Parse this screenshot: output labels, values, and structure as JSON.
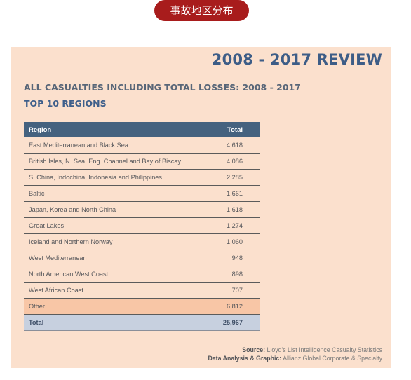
{
  "banner": {
    "label": "事故地区分布"
  },
  "panel": {
    "review_title": "2008 - 2017 REVIEW",
    "heading_line1": "ALL CASUALTIES INCLUDING TOTAL LOSSES: 2008 - 2017",
    "heading_line2": "TOP 10 REGIONS"
  },
  "table": {
    "headers": [
      "Region",
      "Total"
    ],
    "rows": [
      [
        "East Mediterranean and Black Sea",
        "4,618"
      ],
      [
        "British Isles, N. Sea, Eng. Channel and Bay of Biscay",
        "4,086"
      ],
      [
        "S. China, Indochina, Indonesia and Philippines",
        "2,285"
      ],
      [
        "Baltic",
        "1,661"
      ],
      [
        "Japan, Korea and North China",
        "1,618"
      ],
      [
        "Great Lakes",
        "1,274"
      ],
      [
        "Iceland and Northern Norway",
        "1,060"
      ],
      [
        "West Mediterranean",
        "948"
      ],
      [
        "North American West Coast",
        "898"
      ],
      [
        "West African Coast",
        "707"
      ],
      [
        "Other",
        "6,812"
      ],
      [
        "Total",
        "25,967"
      ]
    ]
  },
  "footer": {
    "source_label": "Source:",
    "source_text": "Lloyd's List Intelligence Casualty Statistics",
    "analysis_label": "Data Analysis & Graphic:",
    "analysis_text": "Allianz Global Corporate & Specialty"
  }
}
